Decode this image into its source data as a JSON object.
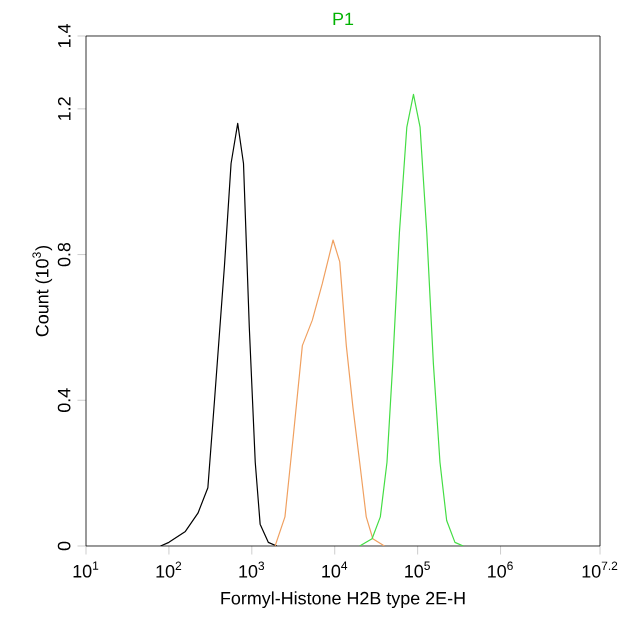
{
  "chart_data": {
    "type": "line",
    "title": "P1",
    "xlabel": "Formyl-Histone H2B type 2E-H",
    "ylabel": "Count (10$^{3}$)",
    "log": "x",
    "xlim": [
      10,
      15848932
    ],
    "ylim": [
      0,
      1.4
    ],
    "xticks": [
      {
        "value": 10,
        "label": "10$^{1}$"
      },
      {
        "value": 100,
        "label": "10$^{2}$"
      },
      {
        "value": 1000,
        "label": "10$^{3}$"
      },
      {
        "value": 10000,
        "label": "10$^{4}$"
      },
      {
        "value": 100000,
        "label": "10$^{5}$"
      },
      {
        "value": 1000000,
        "label": "10$^{6}$"
      },
      {
        "value": 15848932,
        "label": "10$^{7.2}$"
      }
    ],
    "yticks": [
      0,
      {
        "value": 0.4,
        "label": "0.4"
      },
      {
        "value": 0.8,
        "label": "0.8"
      },
      {
        "value": 1.2,
        "label": "1.2"
      },
      {
        "value": 1.4,
        "label": "1.4"
      }
    ],
    "grid": false,
    "marker": "none",
    "line_style": "solid",
    "series": [
      {
        "color": "#000000",
        "x": [
          79.4,
          100,
          158,
          224,
          295,
          355,
          468,
          562,
          676,
          794,
          933,
          1100,
          1260,
          1580,
          2000
        ],
        "values": [
          0,
          0.01,
          0.04,
          0.09,
          0.16,
          0.4,
          0.77,
          1.05,
          1.16,
          1.05,
          0.6,
          0.23,
          0.06,
          0.01,
          0
        ]
      },
      {
        "color": "#f0a060",
        "x": [
          1910,
          2510,
          3160,
          4070,
          5370,
          7080,
          9550,
          11500,
          13800,
          16600,
          20000,
          24000,
          28800,
          39800
        ],
        "values": [
          0,
          0.08,
          0.3,
          0.55,
          0.62,
          0.72,
          0.84,
          0.78,
          0.55,
          0.38,
          0.23,
          0.08,
          0.02,
          0
        ]
      },
      {
        "color": "#44dd44",
        "x": [
          20000,
          28200,
          35500,
          42700,
          50100,
          60300,
          74100,
          89100,
          107000,
          129000,
          155000,
          186000,
          224000,
          282000,
          355000
        ],
        "values": [
          0,
          0.02,
          0.08,
          0.23,
          0.5,
          0.86,
          1.15,
          1.24,
          1.15,
          0.86,
          0.5,
          0.23,
          0.07,
          0.01,
          0
        ]
      }
    ]
  }
}
